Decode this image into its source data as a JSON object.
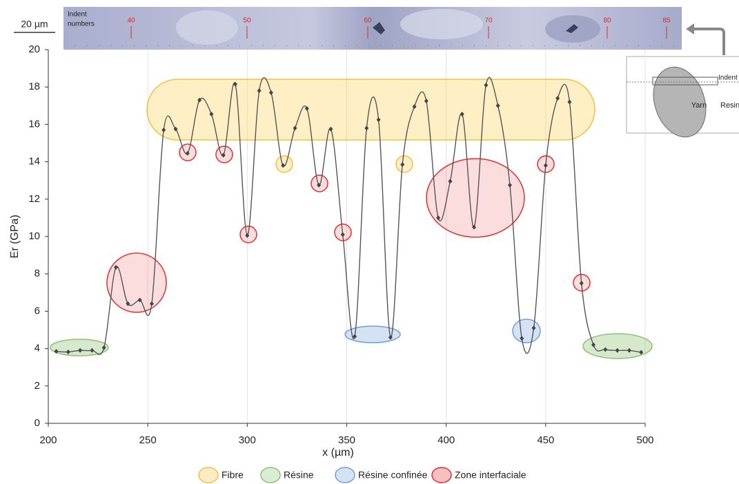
{
  "chart_data": {
    "type": "line",
    "xlabel": "x (µm)",
    "ylabel": "Er (GPa)",
    "x": [
      204,
      210,
      216,
      222,
      228,
      234,
      240,
      246,
      252,
      258,
      264,
      270,
      276,
      282,
      288,
      294,
      300,
      306,
      312,
      318,
      324,
      330,
      336,
      342,
      348,
      354,
      360,
      366,
      372,
      378,
      384,
      390,
      396,
      402,
      408,
      414,
      420,
      426,
      432,
      438,
      444,
      450,
      456,
      462,
      468,
      474,
      480,
      486,
      492,
      498
    ],
    "values": [
      3.85,
      3.82,
      3.9,
      3.9,
      4.05,
      8.35,
      6.4,
      6.6,
      6.4,
      15.7,
      15.75,
      14.45,
      17.3,
      16.55,
      14.35,
      18.15,
      10.05,
      17.8,
      17.7,
      13.8,
      15.8,
      16.85,
      12.75,
      15.75,
      10.1,
      4.65,
      15.8,
      16.25,
      4.6,
      13.85,
      16.95,
      17.25,
      11.0,
      12.95,
      16.55,
      10.5,
      18.1,
      17.0,
      12.75,
      4.55,
      5.1,
      13.8,
      17.4,
      17.2,
      7.5,
      4.2,
      3.95,
      3.9,
      3.9,
      3.8
    ],
    "color": "#555555",
    "xlim": [
      200,
      500
    ],
    "xticks": [
      200,
      250,
      300,
      350,
      400,
      450,
      500
    ],
    "ylim": [
      0,
      20
    ],
    "yticks": [
      0,
      2,
      4,
      6,
      8,
      10,
      12,
      14,
      16,
      18,
      20
    ],
    "grid": true,
    "annotation_legend": [
      {
        "label": "Fibre",
        "color": "#f0c040"
      },
      {
        "label": "Résine",
        "color": "#8cc070"
      },
      {
        "label": "Résine confinée",
        "color": "#6f9fd8"
      },
      {
        "label": "Zone interfaciale",
        "color": "#e03030"
      }
    ],
    "scale_bar": "20 µm",
    "strip_label": [
      "Indent",
      "numbers"
    ],
    "indent_numbers": [
      "40",
      "50",
      "60",
      "70",
      "80",
      "85"
    ],
    "inset": {
      "yarn": "Yarn",
      "resin": "Resin",
      "indent": "Indent"
    }
  }
}
